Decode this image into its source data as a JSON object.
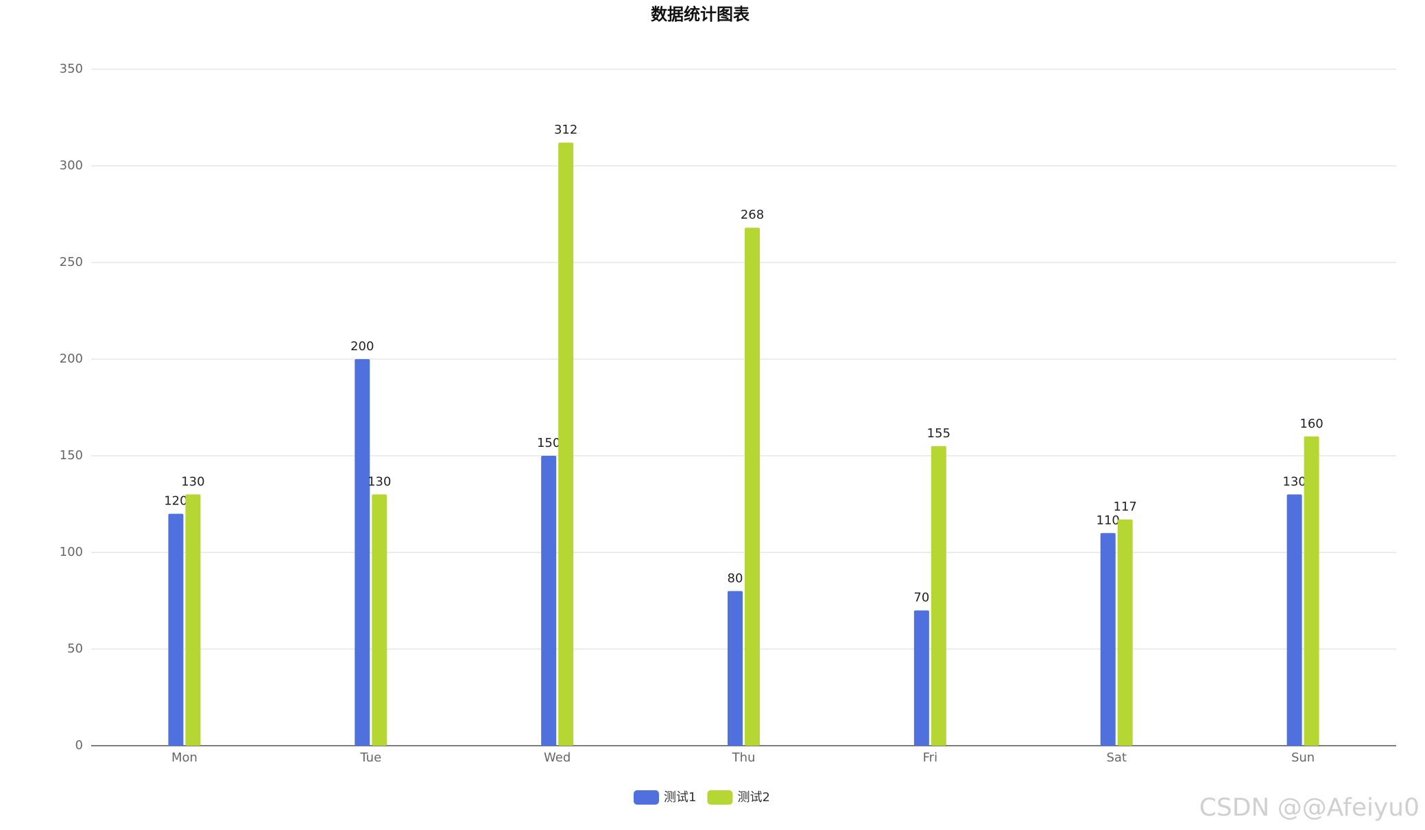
{
  "chart_data": {
    "type": "bar",
    "title": "数据统计图表",
    "categories": [
      "Mon",
      "Tue",
      "Wed",
      "Thu",
      "Fri",
      "Sat",
      "Sun"
    ],
    "series": [
      {
        "name": "测试1",
        "color": "#5070dd",
        "values": [
          120,
          200,
          150,
          80,
          70,
          110,
          130
        ]
      },
      {
        "name": "测试2",
        "color": "#b6d634",
        "values": [
          130,
          130,
          312,
          268,
          155,
          117,
          160
        ]
      }
    ],
    "ylim": [
      0,
      350
    ],
    "yticks": [
      0,
      50,
      100,
      150,
      200,
      250,
      300,
      350
    ],
    "grid": true,
    "legend": "bottom",
    "watermark": "CSDN @@Afeiyu0"
  }
}
